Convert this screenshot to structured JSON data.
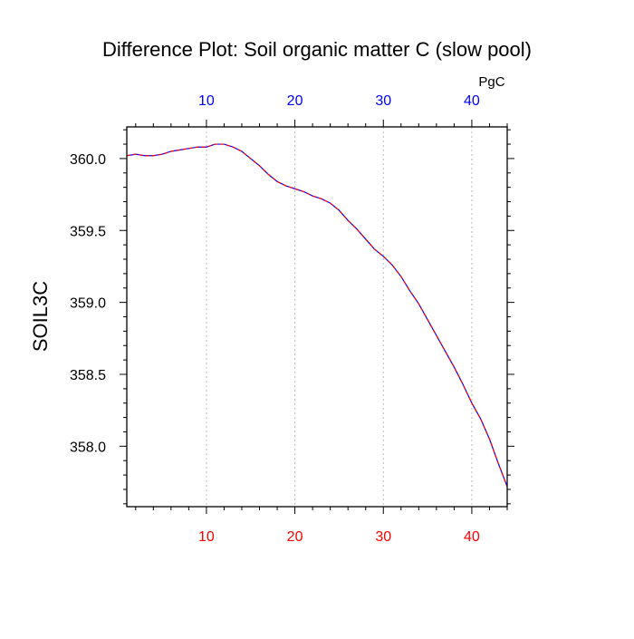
{
  "chart_data": {
    "type": "line",
    "title": "Difference Plot: Soil organic matter C (slow pool)",
    "ylabel": "SOIL3C",
    "top_axis_unit": "PgC",
    "xlim": [
      1,
      44
    ],
    "ylim": [
      357.58,
      360.22
    ],
    "x_ticks": [
      10,
      20,
      30,
      40
    ],
    "x_tick_labels": [
      "10",
      "20",
      "30",
      "40"
    ],
    "x_minor_step": 2,
    "y_ticks": [
      358.0,
      358.5,
      359.0,
      359.5,
      360.0
    ],
    "y_tick_labels": [
      "358.0",
      "358.5",
      "359.0",
      "359.5",
      "360.0"
    ],
    "y_minor_step": 0.1,
    "grid": "vertical dotted at major x ticks",
    "colors": {
      "bottom_tick_labels": "#ff0000",
      "top_tick_labels": "#0000ff",
      "series_a": "#0000ff",
      "series_b": "#ff0000",
      "axes": "#000000",
      "grid": "#bbbbbb"
    },
    "series": [
      {
        "values": [
          [
            1,
            360.02
          ],
          [
            2,
            360.03
          ],
          [
            3,
            360.02
          ],
          [
            4,
            360.02
          ],
          [
            5,
            360.03
          ],
          [
            6,
            360.05
          ],
          [
            7,
            360.06
          ],
          [
            8,
            360.07
          ],
          [
            9,
            360.08
          ],
          [
            10,
            360.08
          ],
          [
            11,
            360.1
          ],
          [
            12,
            360.1
          ],
          [
            13,
            360.08
          ],
          [
            14,
            360.05
          ],
          [
            15,
            360.0
          ],
          [
            16,
            359.95
          ],
          [
            17,
            359.89
          ],
          [
            18,
            359.84
          ],
          [
            19,
            359.81
          ],
          [
            20,
            359.79
          ],
          [
            21,
            359.77
          ],
          [
            22,
            359.74
          ],
          [
            23,
            359.72
          ],
          [
            24,
            359.69
          ],
          [
            25,
            359.64
          ],
          [
            26,
            359.57
          ],
          [
            27,
            359.51
          ],
          [
            28,
            359.44
          ],
          [
            29,
            359.37
          ],
          [
            30,
            359.32
          ],
          [
            31,
            359.26
          ],
          [
            32,
            359.18
          ],
          [
            33,
            359.08
          ],
          [
            34,
            358.99
          ],
          [
            35,
            358.88
          ],
          [
            36,
            358.77
          ],
          [
            37,
            358.66
          ],
          [
            38,
            358.55
          ],
          [
            39,
            358.43
          ],
          [
            40,
            358.3
          ],
          [
            41,
            358.19
          ],
          [
            42,
            358.05
          ],
          [
            43,
            357.88
          ],
          [
            44,
            357.72
          ]
        ]
      }
    ]
  }
}
